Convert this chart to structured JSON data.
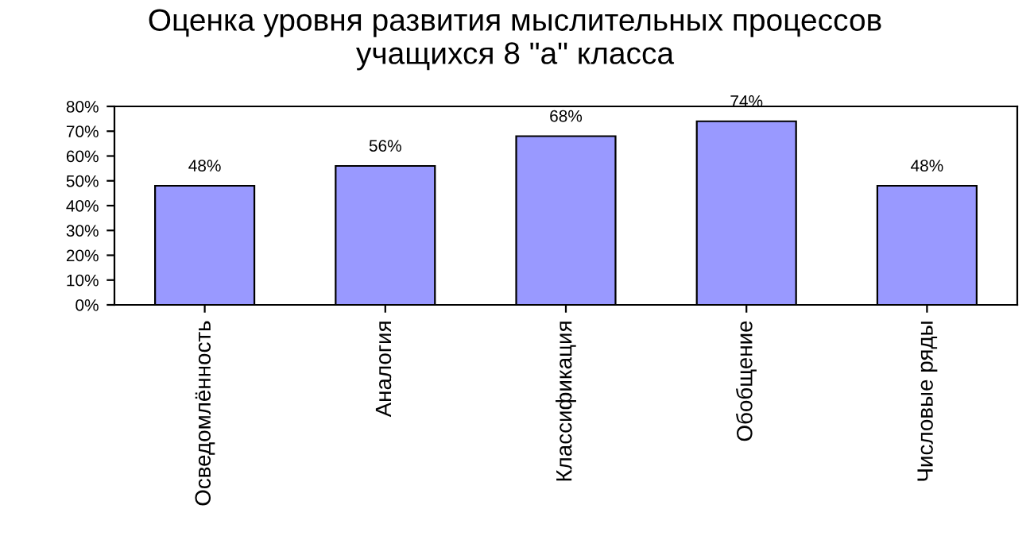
{
  "chart_data": {
    "type": "bar",
    "title": "Оценка уровня развития мыслительных процессов\nучащихся 8 \"а\" класса",
    "categories": [
      "Осведомлённость",
      "Аналогия",
      "Классификация",
      "Обобщение",
      "Числовые ряды"
    ],
    "values": [
      48,
      56,
      68,
      74,
      48
    ],
    "value_labels": [
      "48%",
      "56%",
      "68%",
      "74%",
      "48%"
    ],
    "color": "#9999ff",
    "ylim": [
      0,
      80
    ],
    "yticks": [
      {
        "value": 0,
        "label": "0%"
      },
      {
        "value": 10,
        "label": "10%"
      },
      {
        "value": 20,
        "label": "20%"
      },
      {
        "value": 30,
        "label": "30%"
      },
      {
        "value": 40,
        "label": "40%"
      },
      {
        "value": 50,
        "label": "50%"
      },
      {
        "value": 60,
        "label": "60%"
      },
      {
        "value": 70,
        "label": "70%"
      },
      {
        "value": 80,
        "label": "80%"
      }
    ],
    "grid": false,
    "legend": false
  }
}
